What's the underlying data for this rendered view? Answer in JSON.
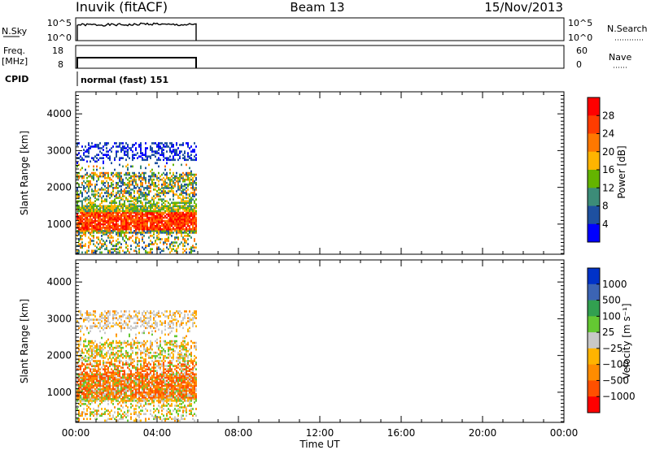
{
  "header": {
    "station": "Inuvik (fitACF)",
    "beam": "Beam 13",
    "date": "15/Nov/2013"
  },
  "chart_data": [
    {
      "type": "line",
      "panel": "noise",
      "left_label": "N.Sky",
      "right_label": "N.Search",
      "left_ticks": [
        "10^5",
        "10^0"
      ],
      "right_ticks": [
        "10^5",
        "10^0"
      ],
      "x_range_hours": [
        0,
        24
      ],
      "data_end_hour": 6
    },
    {
      "type": "line",
      "panel": "frequency",
      "left_label_1": "Freq.",
      "left_label_2": "[MHz]",
      "right_label": "Nave",
      "left_ticks": [
        "18",
        "8"
      ],
      "right_ticks": [
        "60",
        "0"
      ],
      "x_range_hours": [
        0,
        24
      ],
      "data_end_hour": 6
    },
    {
      "type": "text",
      "panel": "cpid",
      "label": "CPID",
      "value": "normal (fast) 151"
    },
    {
      "type": "heatmap",
      "panel": "power",
      "ylabel": "Slant Range [km]",
      "yticks": [
        "4000",
        "3000",
        "2000",
        "1000"
      ],
      "ylim": [
        180,
        4600
      ],
      "xlim_hours": [
        0,
        24
      ],
      "colorbar_label": "Power [dB]",
      "colorbar_ticks": [
        "28",
        "24",
        "20",
        "16",
        "12",
        "8",
        "4"
      ],
      "colorbar_colors": [
        "#ff0000",
        "#ff3c00",
        "#ff7800",
        "#ffb400",
        "#64b400",
        "#3c8c78",
        "#1e50a0",
        "#0000ff"
      ]
    },
    {
      "type": "heatmap",
      "panel": "velocity",
      "ylabel": "Slant Range [km]",
      "yticks": [
        "4000",
        "3000",
        "2000",
        "1000"
      ],
      "ylim": [
        180,
        4600
      ],
      "xlim_hours": [
        0,
        24
      ],
      "colorbar_label": "Velocity [m s⁻¹]",
      "colorbar_ticks": [
        "1000",
        "500",
        "100",
        "25",
        "−25",
        "−100",
        "−500",
        "−1000"
      ],
      "colorbar_colors": [
        "#0032c8",
        "#3c64b4",
        "#32a050",
        "#64c832",
        "#c8c8c8",
        "#ffb400",
        "#ff8c00",
        "#ff5000",
        "#ff0000"
      ],
      "xlabel": "Time UT",
      "xticks": [
        "00:00",
        "04:00",
        "08:00",
        "12:00",
        "16:00",
        "20:00",
        "00:00"
      ]
    }
  ]
}
